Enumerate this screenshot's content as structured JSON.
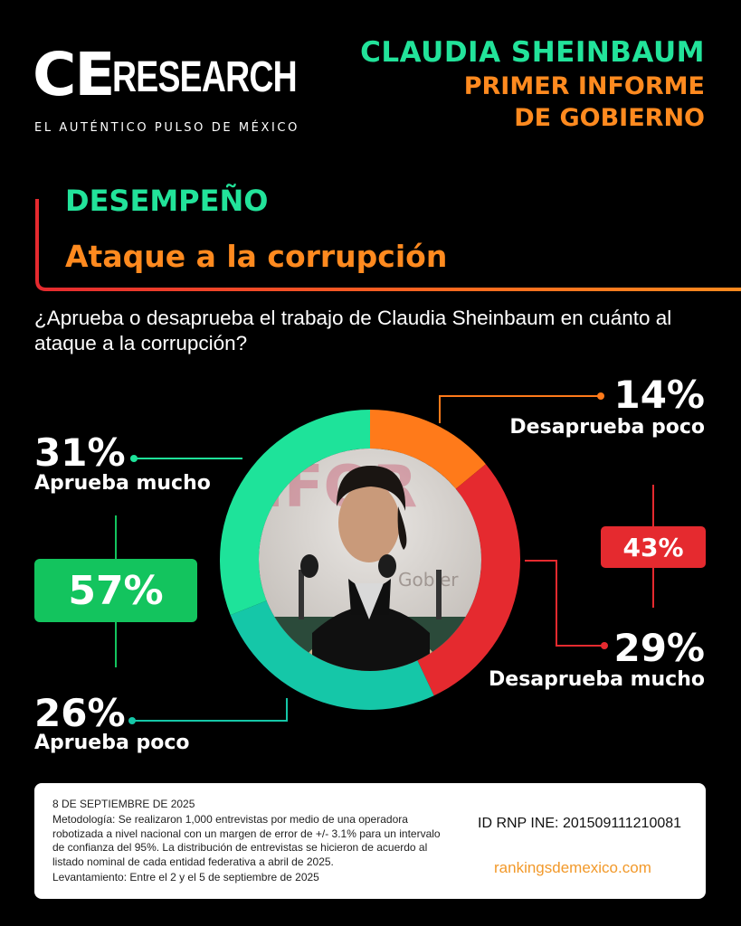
{
  "brand": {
    "logo_ce": "CE",
    "logo_research": "RESEARCH",
    "tagline": "EL AUTÉNTICO PULSO DE MÉXICO"
  },
  "header": {
    "line1": "CLAUDIA SHEINBAUM",
    "line2": "PRIMER INFORME",
    "line3": "DE GOBIERNO"
  },
  "section": {
    "title": "DESEMPEÑO",
    "subtitle": "Ataque a la corrupción"
  },
  "question": "¿Aprueba o desaprueba el trabajo de Claudia Sheinbaum en cuánto al ataque a la corrupción?",
  "colors": {
    "aprueba_mucho": "#1ee39a",
    "aprueba_poco": "#15c7a8",
    "desaprueba_poco": "#ff7a1a",
    "desaprueba_mucho": "#e52a2f",
    "aprueba_total": "#13c45e",
    "desaprueba_total": "#e52a2f"
  },
  "chart_data": {
    "type": "pie",
    "variant": "donut",
    "categories": [
      "Desaprueba poco",
      "Desaprueba mucho",
      "Aprueba poco",
      "Aprueba mucho"
    ],
    "values": [
      14,
      29,
      26,
      31
    ],
    "value_labels": [
      "14%",
      "29%",
      "26%",
      "31%"
    ],
    "totals": [
      {
        "name": "Aprueba",
        "value": 57,
        "label": "57%"
      },
      {
        "name": "Desaprueba",
        "value": 43,
        "label": "43%"
      }
    ],
    "center_image": "photo-of-claudia-sheinbaum"
  },
  "footer": {
    "date": "8 DE SEPTIEMBRE DE 2025",
    "methodology": "Metodología: Se realizaron 1,000 entrevistas por medio de una operadora robotizada a nivel nacional con un margen de error de +/- 3.1% para un intervalo de confianza del 95%. La distribución de entrevistas se hicieron de acuerdo al listado nominal de cada entidad federativa a abril de 2025.",
    "fieldwork": "Levantamiento: Entre el 2 y el 5 de septiembre de 2025",
    "id": "ID RNP INE: 201509111210081",
    "url": "rankingsdemexico.com"
  }
}
